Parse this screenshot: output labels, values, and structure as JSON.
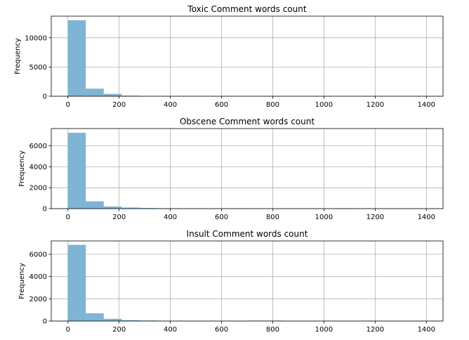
{
  "chart_data": [
    {
      "type": "bar",
      "title": "Toxic Comment words count",
      "xlabel": "",
      "ylabel": "Frequency",
      "xlim": [
        -65,
        1465
      ],
      "ylim": [
        0,
        13700
      ],
      "xticks": [
        0,
        200,
        400,
        600,
        800,
        1000,
        1200,
        1400
      ],
      "yticks": [
        0,
        5000,
        10000
      ],
      "grid": true,
      "bin_width": 70,
      "bin_starts": [
        0,
        70,
        140,
        210
      ],
      "values": [
        13000,
        1300,
        400,
        100
      ],
      "color": "#7fb4d4"
    },
    {
      "type": "bar",
      "title": "Obscene Comment words count",
      "xlabel": "",
      "ylabel": "Frequency",
      "xlim": [
        -65,
        1465
      ],
      "ylim": [
        0,
        7650
      ],
      "xticks": [
        0,
        200,
        400,
        600,
        800,
        1000,
        1200,
        1400
      ],
      "yticks": [
        0,
        2000,
        4000,
        6000
      ],
      "grid": true,
      "bin_width": 70,
      "bin_starts": [
        0,
        70,
        140,
        210,
        280,
        350,
        420,
        490,
        560,
        630,
        700,
        770,
        840,
        910,
        1050
      ],
      "values": [
        7250,
        700,
        200,
        100,
        60,
        40,
        30,
        30,
        25,
        25,
        20,
        20,
        20,
        20,
        40
      ],
      "color": "#7fb4d4"
    },
    {
      "type": "bar",
      "title": "Insult Comment words count",
      "xlabel": "",
      "ylabel": "Frequency",
      "xlim": [
        -65,
        1465
      ],
      "ylim": [
        0,
        7200
      ],
      "xticks": [
        0,
        200,
        400,
        600,
        800,
        1000,
        1200,
        1400
      ],
      "yticks": [
        0,
        2000,
        4000,
        6000
      ],
      "grid": true,
      "bin_width": 70,
      "bin_starts": [
        0,
        70,
        140,
        210,
        280,
        350,
        700,
        770
      ],
      "values": [
        6850,
        700,
        200,
        80,
        50,
        30,
        40,
        40
      ],
      "color": "#7fb4d4"
    }
  ]
}
